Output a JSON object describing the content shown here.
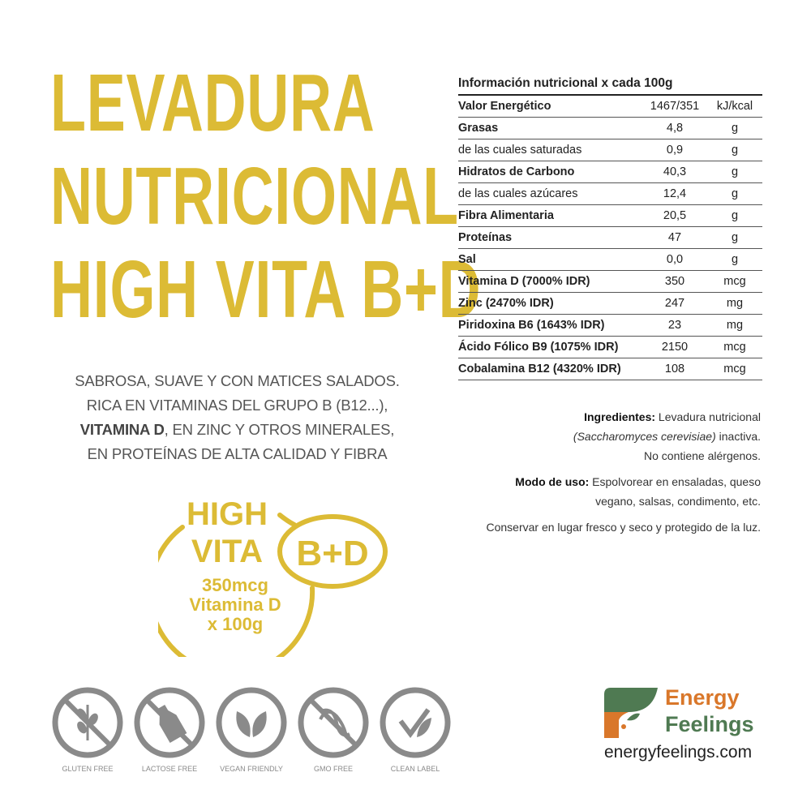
{
  "title": {
    "lines": [
      "LEVADURA",
      "NUTRICIONAL",
      "HIGH VITA B+D"
    ]
  },
  "description": {
    "line1": "SABROSA, SUAVE Y CON MATICES SALADOS.",
    "line2": "RICA EN VITAMINAS DEL GRUPO B (B12...),",
    "line3_bold": "VITAMINA D",
    "line3_rest": ", EN ZINC Y OTROS MINERALES,",
    "line4": "EN PROTEÍNAS DE ALTA CALIDAD Y FIBRA"
  },
  "badge": {
    "high": "HIGH",
    "vita": "VITA",
    "bd": "B+D",
    "amount": "350mcg",
    "vitamin": "Vitamina D",
    "per": "x 100g",
    "color": "#dcbb35"
  },
  "nutrition": {
    "title": "Información nutricional x cada 100g",
    "rows": [
      {
        "name": "Valor Energético",
        "value": "1467/351",
        "unit": "kJ/kcal",
        "bold": true
      },
      {
        "name": "Grasas",
        "value": "4,8",
        "unit": "g",
        "bold": true
      },
      {
        "name": "de las cuales saturadas",
        "value": "0,9",
        "unit": "g",
        "bold": false
      },
      {
        "name": "Hidratos de Carbono",
        "value": "40,3",
        "unit": "g",
        "bold": true
      },
      {
        "name": "de las cuales azúcares",
        "value": "12,4",
        "unit": "g",
        "bold": false
      },
      {
        "name": "Fibra Alimentaria",
        "value": "20,5",
        "unit": "g",
        "bold": true
      },
      {
        "name": "Proteínas",
        "value": "47",
        "unit": "g",
        "bold": true
      },
      {
        "name": "Sal",
        "value": "0,0",
        "unit": "g",
        "bold": true
      },
      {
        "name": "Vitamina D (7000% IDR)",
        "value": "350",
        "unit": "mcg",
        "bold": true
      },
      {
        "name": "Zinc (2470% IDR)",
        "value": "247",
        "unit": "mg",
        "bold": true
      },
      {
        "name": "Piridoxina B6 (1643% IDR)",
        "value": "23",
        "unit": "mg",
        "bold": true
      },
      {
        "name": "Ácido Fólico B9 (1075% IDR)",
        "value": "2150",
        "unit": "mcg",
        "bold": true
      },
      {
        "name": "Cobalamina B12 (4320% IDR)",
        "value": "108",
        "unit": "mcg",
        "bold": true
      }
    ]
  },
  "info": {
    "ingredients_label": "Ingredientes:",
    "ingredients_text": " Levadura nutricional",
    "ingredients_italic": "(Saccharomyces cerevisiae)",
    "ingredients_rest": " inactiva.",
    "allergens": "No contiene alérgenos.",
    "usage_label": "Modo de uso:",
    "usage_text1": " Espolvorear en ensaladas, queso",
    "usage_text2": "vegano, salsas, condimento, etc.",
    "storage": "Conservar en lugar fresco y seco y protegido de la luz."
  },
  "icons": [
    {
      "label": "GLUTEN FREE",
      "icon": "wheat-icon"
    },
    {
      "label": "LACTOSE FREE",
      "icon": "milk-bottle-icon"
    },
    {
      "label": "VEGAN FRIENDLY",
      "icon": "leaves-icon"
    },
    {
      "label": "GMO FREE",
      "icon": "dna-icon"
    },
    {
      "label": "CLEAN LABEL",
      "icon": "check-leaf-icon"
    }
  ],
  "logo": {
    "line1": "Energy",
    "line2": "Feelings",
    "url": "energyfeelings.com",
    "orange": "#d9772a",
    "green": "#4f7a52"
  }
}
